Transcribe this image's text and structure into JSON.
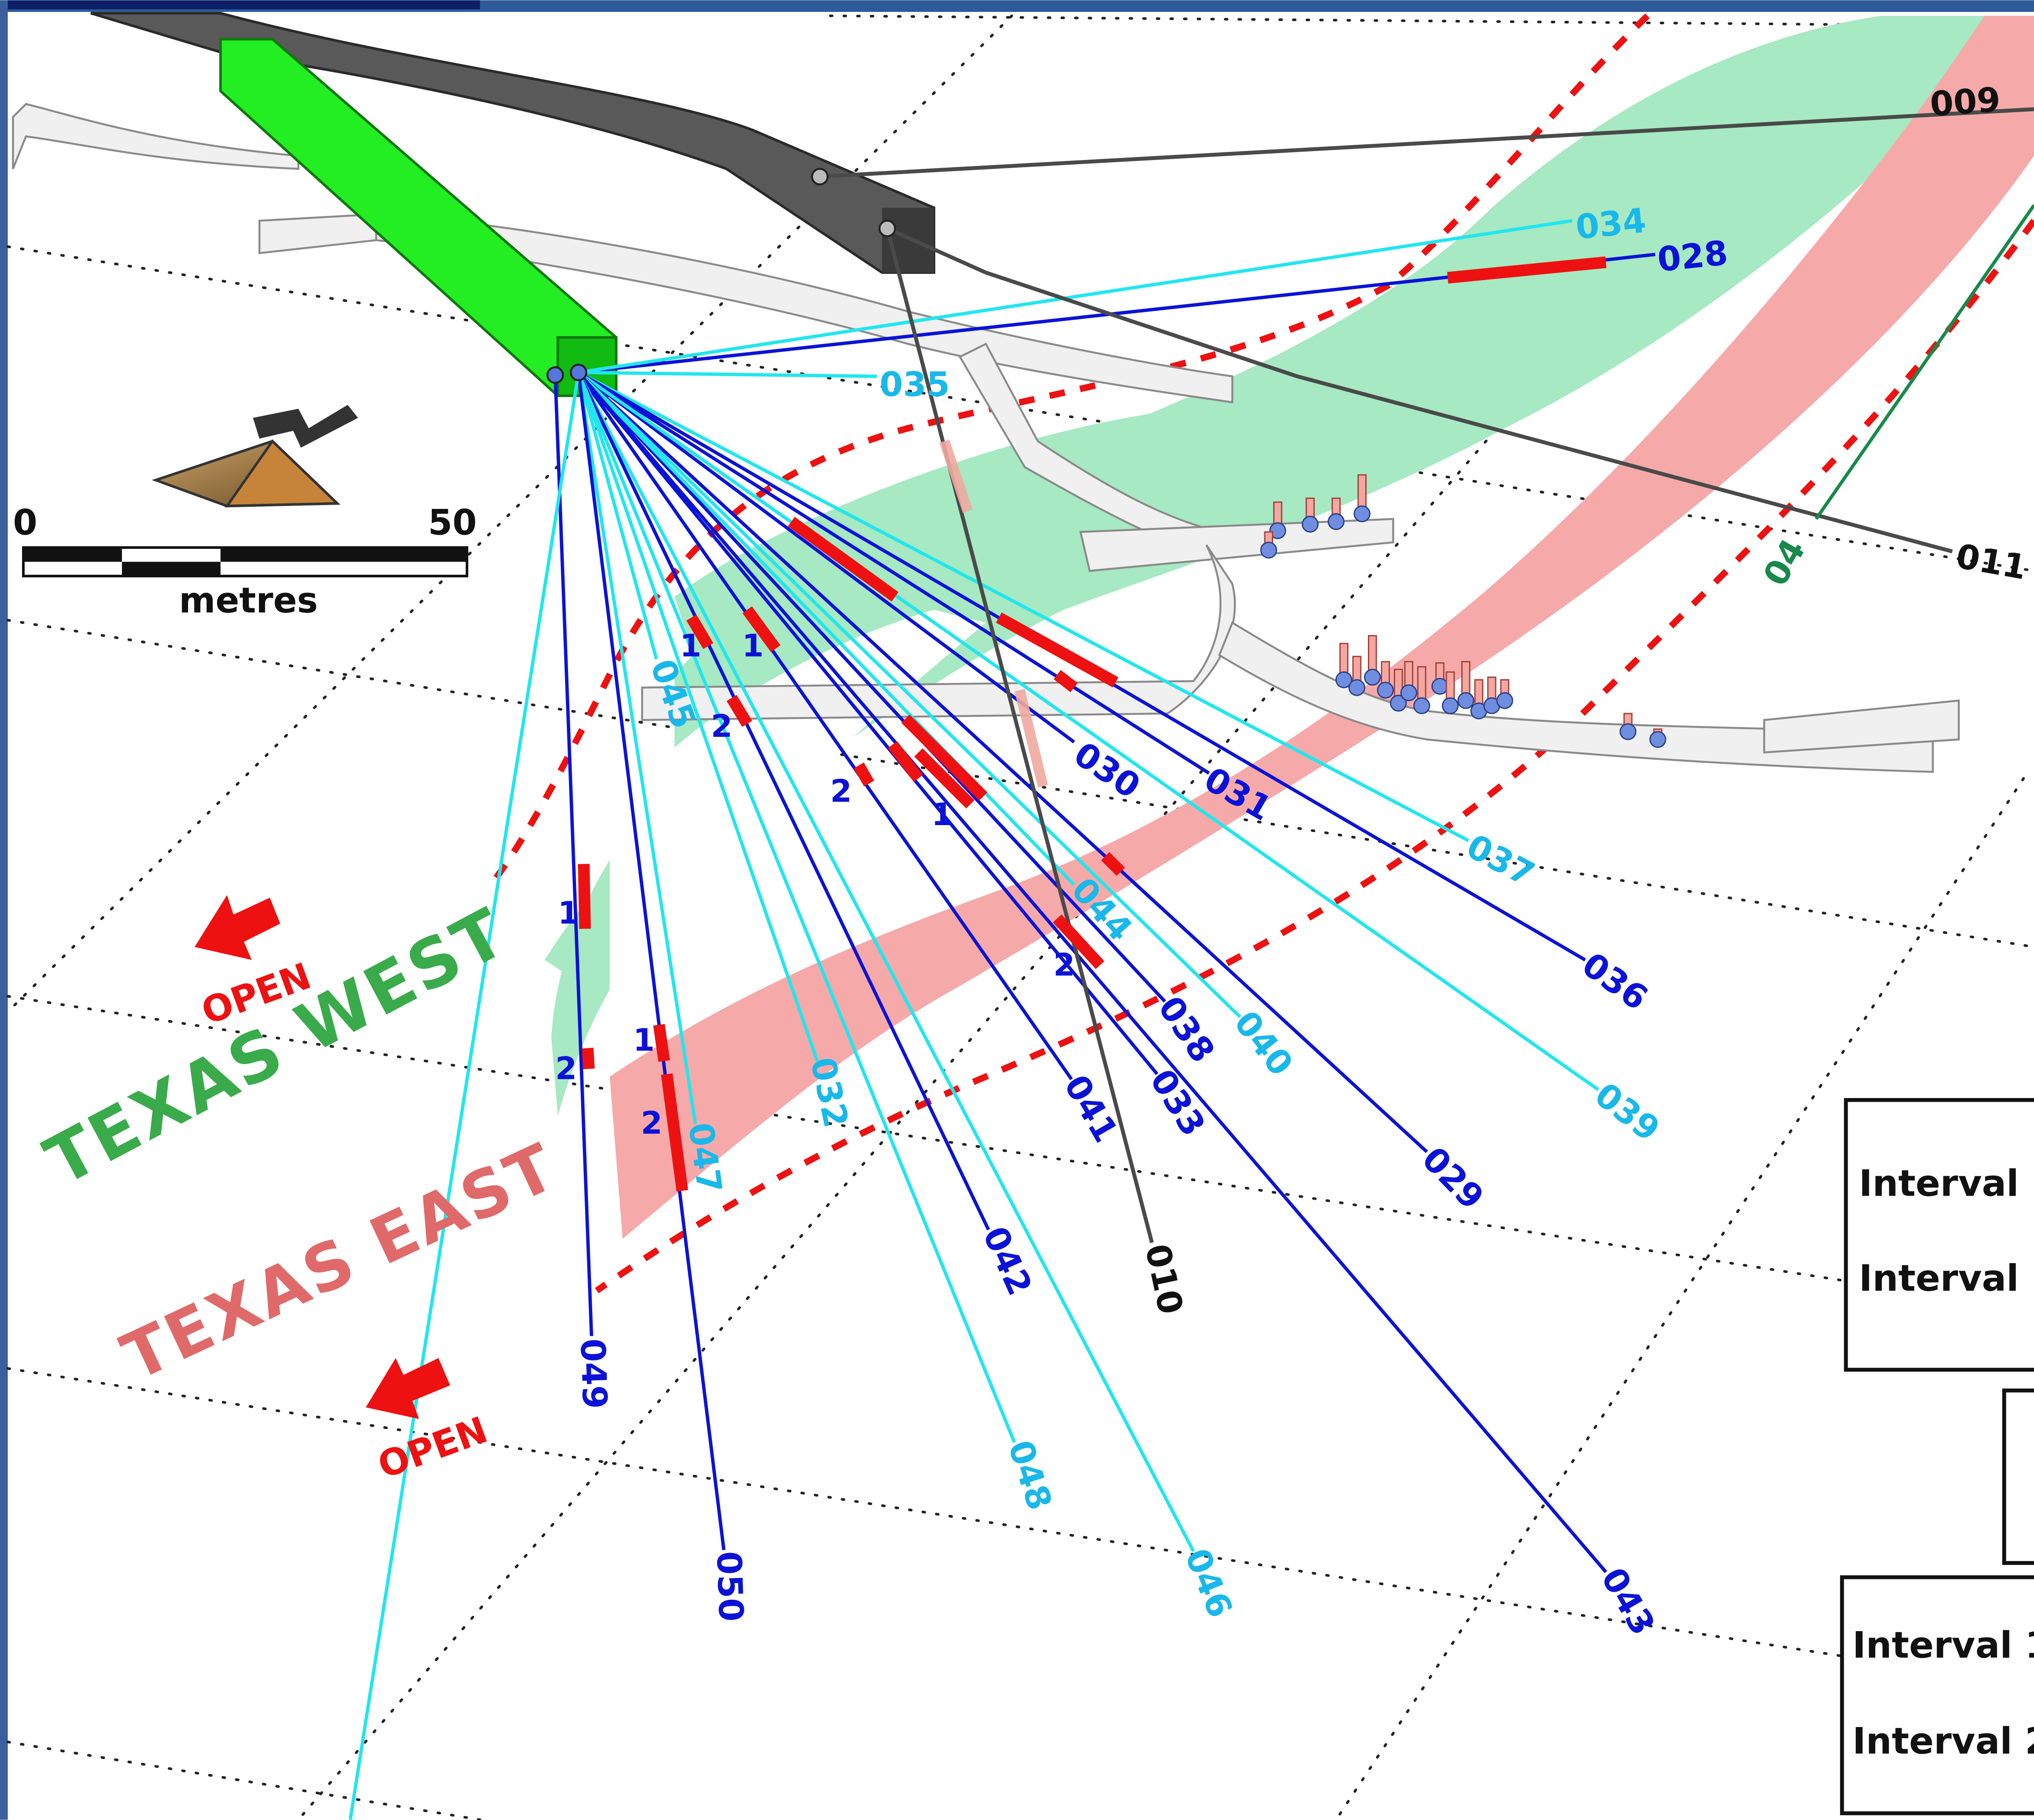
{
  "map": {
    "colors": {
      "texas_west_zone": "#a6e9c2",
      "texas_east_zone": "#f6a9a9",
      "boundary_dashed": "#ee1111",
      "hole_dark_blue": "#0b12d8",
      "hole_light_blue": "#22e6ee",
      "hole_label_light": "#19b8ea",
      "hole_grey": "#4a4a4a",
      "hole_green": "#178a4a",
      "intercept": "#ee1111",
      "drift_green": "#22ee22",
      "drift_dark": "#595959",
      "workings_light": "#f0f0f0",
      "frame_blue": "#2d5a99",
      "open_arrow": "#ee1111"
    },
    "north_arrow": {
      "icon": "north-arrow-icon",
      "letter": "N"
    },
    "scale_bar": {
      "start_label": "0",
      "end_label": "50",
      "unit_label": "metres"
    },
    "zones": [
      {
        "id": "texas-west",
        "label": "TEXAS WEST"
      },
      {
        "id": "texas-east",
        "label": "TEXAS EAST"
      }
    ],
    "open_markers": [
      {
        "id": "open-upper",
        "label": "OPEN",
        "icon": "arrow-icon"
      },
      {
        "id": "open-lower",
        "label": "OPEN",
        "icon": "arrow-icon"
      }
    ],
    "drill_holes": [
      {
        "id": "028",
        "label": "028",
        "style": "dark"
      },
      {
        "id": "034",
        "label": "034",
        "style": "light"
      },
      {
        "id": "035",
        "label": "035",
        "style": "light"
      },
      {
        "id": "030",
        "label": "030",
        "style": "dark"
      },
      {
        "id": "031",
        "label": "031",
        "style": "dark"
      },
      {
        "id": "037",
        "label": "037",
        "style": "light"
      },
      {
        "id": "036",
        "label": "036",
        "style": "dark"
      },
      {
        "id": "039",
        "label": "039",
        "style": "light"
      },
      {
        "id": "029",
        "label": "029",
        "style": "dark"
      },
      {
        "id": "040",
        "label": "040",
        "style": "light"
      },
      {
        "id": "038",
        "label": "038",
        "style": "dark"
      },
      {
        "id": "044",
        "label": "044",
        "style": "light"
      },
      {
        "id": "033",
        "label": "033",
        "style": "dark"
      },
      {
        "id": "041",
        "label": "041",
        "style": "dark"
      },
      {
        "id": "043",
        "label": "043",
        "style": "dark"
      },
      {
        "id": "046",
        "label": "046",
        "style": "light"
      },
      {
        "id": "042",
        "label": "042",
        "style": "dark"
      },
      {
        "id": "048",
        "label": "048",
        "style": "light"
      },
      {
        "id": "032",
        "label": "032",
        "style": "light"
      },
      {
        "id": "047",
        "label": "047",
        "style": "light"
      },
      {
        "id": "045",
        "label": "045",
        "style": "light"
      },
      {
        "id": "050",
        "label": "050",
        "style": "dark"
      },
      {
        "id": "049",
        "label": "049",
        "style": "dark"
      },
      {
        "id": "010",
        "label": "010",
        "style": "grey"
      },
      {
        "id": "009",
        "label": "009",
        "style": "grey"
      },
      {
        "id": "011",
        "label": "011",
        "style": "grey"
      },
      {
        "id": "04",
        "label": "04",
        "style": "green"
      },
      {
        "id": "unlabelled",
        "label": "",
        "style": "light"
      }
    ],
    "intercept_labels": [
      "1",
      "1",
      "2",
      "2",
      "1",
      "2",
      "1",
      "2",
      "1",
      "2",
      "2"
    ],
    "legend": {
      "box1": {
        "rows": [
          "Interval 1",
          "Interval 2"
        ]
      },
      "box2": {
        "rows": []
      },
      "box3": {
        "rows": [
          "Interval 1",
          "Interval 2"
        ]
      }
    }
  }
}
